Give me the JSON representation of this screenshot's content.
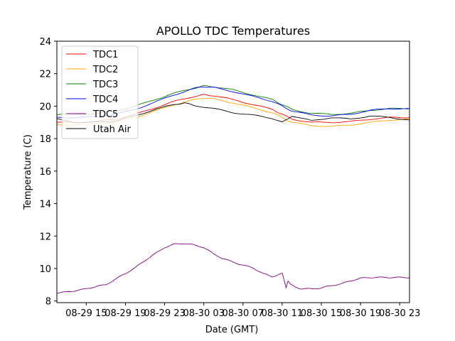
{
  "chart_data": {
    "type": "line",
    "title": "APOLLO TDC Temperatures",
    "xlabel": "Date (GMT)",
    "ylabel": "Temperature (C)",
    "x_unit": "hours since 08-29 00:00 GMT",
    "xlim": [
      12,
      48
    ],
    "ylim": [
      7.9,
      24
    ],
    "grid": false,
    "legend_position": "top-left",
    "xticks": [
      {
        "value": 15,
        "label": "08-29 15"
      },
      {
        "value": 19,
        "label": "08-29 19"
      },
      {
        "value": 23,
        "label": "08-29 23"
      },
      {
        "value": 27,
        "label": "08-30 03"
      },
      {
        "value": 31,
        "label": "08-30 07"
      },
      {
        "value": 35,
        "label": "08-30 11"
      },
      {
        "value": 39,
        "label": "08-30 15"
      },
      {
        "value": 43,
        "label": "08-30 19"
      },
      {
        "value": 47,
        "label": "08-30 23"
      }
    ],
    "yticks": [
      {
        "value": 8,
        "label": "8"
      },
      {
        "value": 10,
        "label": "10"
      },
      {
        "value": 12,
        "label": "12"
      },
      {
        "value": 14,
        "label": "14"
      },
      {
        "value": 16,
        "label": "16"
      },
      {
        "value": 18,
        "label": "18"
      },
      {
        "value": 20,
        "label": "20"
      },
      {
        "value": 22,
        "label": "22"
      },
      {
        "value": 24,
        "label": "24"
      }
    ],
    "series": [
      {
        "name": "TDC1",
        "color": "#ff0000",
        "x": [
          12,
          14,
          16,
          18,
          20,
          22,
          24,
          26,
          27,
          28,
          30,
          32,
          34,
          35,
          36,
          38,
          40,
          42,
          44,
          46,
          48
        ],
        "y": [
          19.0,
          19.0,
          19.05,
          19.2,
          19.5,
          19.9,
          20.3,
          20.6,
          20.7,
          20.65,
          20.4,
          20.1,
          19.8,
          19.5,
          19.2,
          19.0,
          19.0,
          19.05,
          19.2,
          19.3,
          19.3
        ]
      },
      {
        "name": "TDC2",
        "color": "#ffa500",
        "x": [
          12,
          14,
          16,
          18,
          20,
          22,
          24,
          26,
          27,
          28,
          30,
          32,
          34,
          35,
          36,
          38,
          40,
          42,
          44,
          46,
          48
        ],
        "y": [
          18.85,
          18.85,
          18.9,
          19.0,
          19.3,
          19.7,
          20.1,
          20.4,
          20.5,
          20.45,
          20.2,
          19.9,
          19.6,
          19.3,
          19.0,
          18.8,
          18.75,
          18.85,
          19.0,
          19.15,
          19.2
        ]
      },
      {
        "name": "TDC3",
        "color": "#008000",
        "x": [
          12,
          14,
          16,
          18,
          20,
          22,
          24,
          26,
          27,
          28,
          30,
          32,
          34,
          35,
          36,
          38,
          40,
          42,
          44,
          46,
          48
        ],
        "y": [
          19.5,
          19.5,
          19.55,
          19.7,
          20.0,
          20.4,
          20.8,
          21.1,
          21.25,
          21.2,
          21.0,
          20.7,
          20.4,
          20.1,
          19.8,
          19.55,
          19.5,
          19.55,
          19.75,
          19.85,
          19.85
        ]
      },
      {
        "name": "TDC4",
        "color": "#0000ff",
        "x": [
          12,
          14,
          16,
          18,
          20,
          22,
          24,
          26,
          27,
          28,
          30,
          32,
          34,
          35,
          36,
          38,
          40,
          42,
          44,
          46,
          48
        ],
        "y": [
          19.3,
          19.3,
          19.35,
          19.5,
          19.8,
          20.25,
          20.7,
          21.1,
          21.2,
          21.15,
          20.9,
          20.6,
          20.3,
          20.0,
          19.7,
          19.45,
          19.4,
          19.5,
          19.75,
          19.85,
          19.85
        ]
      },
      {
        "name": "TDC5",
        "color": "#800080",
        "x": [
          12,
          13,
          14,
          15,
          16,
          17,
          18,
          19,
          20,
          21,
          22,
          23,
          24,
          25,
          26,
          27,
          28,
          29,
          30,
          31,
          32,
          33,
          34,
          35,
          35.4,
          35.6,
          35.9,
          36.3,
          37,
          38,
          39,
          40,
          41,
          42,
          43,
          44,
          45,
          46,
          47,
          48
        ],
        "y": [
          8.5,
          8.55,
          8.65,
          8.75,
          8.9,
          9.0,
          9.35,
          9.7,
          10.05,
          10.5,
          10.9,
          11.3,
          11.5,
          11.55,
          11.45,
          11.3,
          10.9,
          10.6,
          10.4,
          10.2,
          10.05,
          9.7,
          9.5,
          9.7,
          8.85,
          9.2,
          9.05,
          8.85,
          8.75,
          8.75,
          8.8,
          8.95,
          9.05,
          9.25,
          9.4,
          9.45,
          9.45,
          9.45,
          9.45,
          9.45
        ]
      },
      {
        "name": "Utah Air",
        "color": "#000000",
        "x": [
          12,
          14,
          16,
          18,
          20,
          22,
          24,
          25,
          26,
          28,
          30,
          32,
          34,
          35,
          36,
          38,
          40,
          42,
          44,
          46,
          48
        ],
        "y": [
          19.2,
          19.0,
          19.0,
          19.1,
          19.4,
          19.8,
          20.1,
          20.2,
          20.05,
          19.85,
          19.6,
          19.45,
          19.25,
          19.0,
          19.4,
          19.1,
          19.3,
          19.2,
          19.4,
          19.3,
          19.15
        ]
      }
    ]
  }
}
